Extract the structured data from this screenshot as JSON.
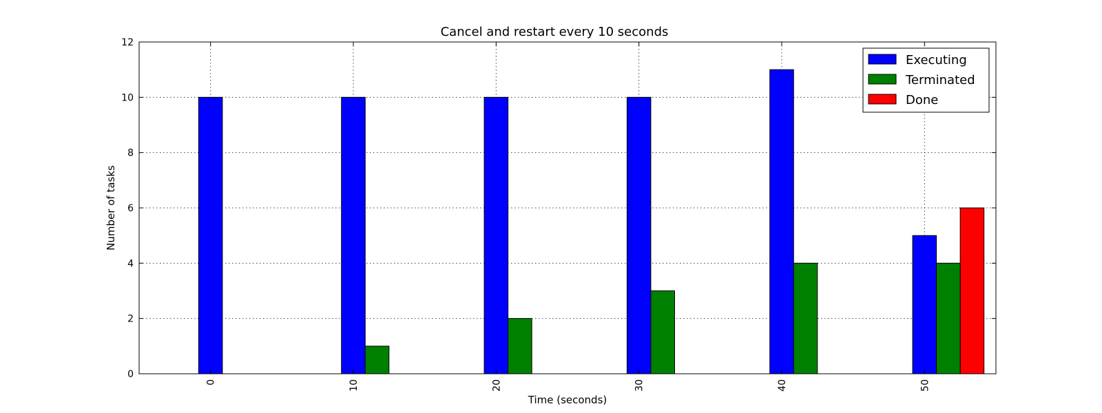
{
  "chart_data": {
    "type": "bar",
    "title": "Cancel and restart every 10 seconds",
    "xlabel": "Time (seconds)",
    "ylabel": "Number of tasks",
    "categories": [
      "0",
      "10",
      "20",
      "30",
      "40",
      "50"
    ],
    "series": [
      {
        "name": "Executing",
        "color": "#0000ff",
        "values": [
          10,
          10,
          10,
          10,
          11,
          5
        ]
      },
      {
        "name": "Terminated",
        "color": "#008000",
        "values": [
          0,
          1,
          2,
          3,
          4,
          4
        ]
      },
      {
        "name": "Done",
        "color": "#ff0000",
        "values": [
          0,
          0,
          0,
          0,
          0,
          6
        ]
      }
    ],
    "ylim": [
      0,
      12
    ],
    "yticks": [
      0,
      2,
      4,
      6,
      8,
      10,
      12
    ],
    "grid": true,
    "legend_position": "top-right"
  }
}
